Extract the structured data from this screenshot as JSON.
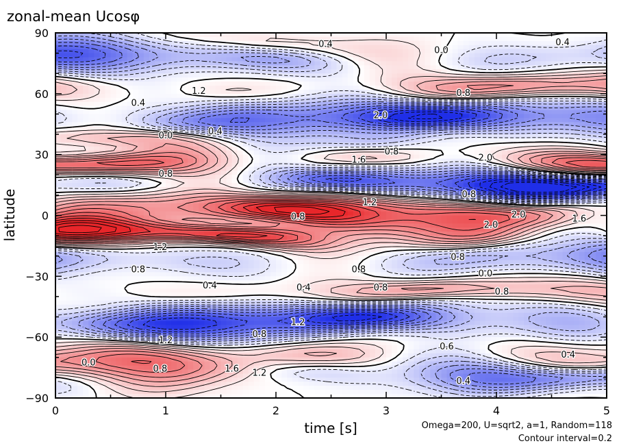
{
  "chart_data": {
    "type": "heatmap",
    "title": "zonal-mean Ucosφ",
    "xlabel": "time [s]",
    "ylabel": "latitude",
    "xlim": [
      0,
      5
    ],
    "ylim": [
      -90,
      90
    ],
    "x_ticks": [
      "0",
      "1",
      "2",
      "3",
      "4",
      "5"
    ],
    "y_ticks": [
      "90",
      "60",
      "30",
      "0",
      "−30",
      "−60",
      "−90"
    ],
    "annotations": [
      "Omega=200, U=sqrt2, a=1, Random=118",
      "Contour interval=0.2"
    ],
    "colors": {
      "positive": "#e8262a",
      "negative": "#1f2ee8",
      "zero": "#ffffff"
    },
    "contour_interval": 0.2,
    "bands": [
      {
        "lat": 83,
        "amp": 0.4,
        "width": 5
      },
      {
        "lat": 78,
        "amp": -1.6,
        "width": 6
      },
      {
        "lat": 62,
        "amp": 1.2,
        "width": 5
      },
      {
        "lat": 47,
        "amp": -2.0,
        "width": 7
      },
      {
        "lat": 40,
        "amp": 0.8,
        "width": 4
      },
      {
        "lat": 27,
        "amp": 2.0,
        "width": 4
      },
      {
        "lat": 16,
        "amp": -2.4,
        "width": 5
      },
      {
        "lat": 2,
        "amp": 2.0,
        "width": 6
      },
      {
        "lat": -10,
        "amp": 2.0,
        "width": 4
      },
      {
        "lat": -22,
        "amp": -1.2,
        "width": 6
      },
      {
        "lat": -38,
        "amp": 0.8,
        "width": 4
      },
      {
        "lat": -52,
        "amp": -2.0,
        "width": 6
      },
      {
        "lat": -72,
        "amp": 1.6,
        "width": 7
      },
      {
        "lat": -78,
        "amp": -1.6,
        "width": 5
      }
    ],
    "contour_labels": [
      {
        "text": "0.4",
        "x": 2.45,
        "y": 83
      },
      {
        "text": "0.0",
        "x": 3.5,
        "y": 80
      },
      {
        "text": "0.4",
        "x": 4.6,
        "y": 84
      },
      {
        "text": "0.8",
        "x": 3.7,
        "y": 59
      },
      {
        "text": "1.2",
        "x": 1.3,
        "y": 60
      },
      {
        "text": "0.4",
        "x": 0.75,
        "y": 54
      },
      {
        "text": "2.0",
        "x": 2.95,
        "y": 48
      },
      {
        "text": "0.0",
        "x": 1.0,
        "y": 38
      },
      {
        "text": "0.4",
        "x": 1.45,
        "y": 40
      },
      {
        "text": "1.6",
        "x": 2.75,
        "y": 26
      },
      {
        "text": "0.8",
        "x": 3.05,
        "y": 30
      },
      {
        "text": "2.0",
        "x": 3.9,
        "y": 27
      },
      {
        "text": "0.8",
        "x": 1.0,
        "y": 19
      },
      {
        "text": "0.8",
        "x": 3.75,
        "y": 9
      },
      {
        "text": "1.2",
        "x": 2.85,
        "y": 5
      },
      {
        "text": "0.8",
        "x": 2.2,
        "y": -2
      },
      {
        "text": "2.0",
        "x": 4.2,
        "y": -1
      },
      {
        "text": "1.6",
        "x": 4.75,
        "y": -3
      },
      {
        "text": "2.0",
        "x": 3.95,
        "y": -6
      },
      {
        "text": "1.2",
        "x": 0.95,
        "y": -17
      },
      {
        "text": "0.8",
        "x": 0.75,
        "y": -28
      },
      {
        "text": "0.8",
        "x": 2.75,
        "y": -28
      },
      {
        "text": "0.8",
        "x": 3.65,
        "y": -22
      },
      {
        "text": "0.0",
        "x": 3.9,
        "y": -30
      },
      {
        "text": "0.4",
        "x": 2.25,
        "y": -37
      },
      {
        "text": "0.8",
        "x": 2.95,
        "y": -37
      },
      {
        "text": "0.4",
        "x": 1.4,
        "y": -36
      },
      {
        "text": "0.8",
        "x": 4.05,
        "y": -39
      },
      {
        "text": "1.2",
        "x": 2.2,
        "y": -54
      },
      {
        "text": "0.8",
        "x": 1.85,
        "y": -60
      },
      {
        "text": "1.2",
        "x": 1.0,
        "y": -63
      },
      {
        "text": "0.0",
        "x": 0.3,
        "y": -74
      },
      {
        "text": "0.8",
        "x": 0.95,
        "y": -77
      },
      {
        "text": "1.6",
        "x": 1.6,
        "y": -77
      },
      {
        "text": "1.2",
        "x": 1.85,
        "y": -79
      },
      {
        "text": "0.6",
        "x": 3.55,
        "y": -66
      },
      {
        "text": "0.4",
        "x": 4.65,
        "y": -70
      },
      {
        "text": "0.4",
        "x": 3.7,
        "y": -83
      }
    ]
  }
}
